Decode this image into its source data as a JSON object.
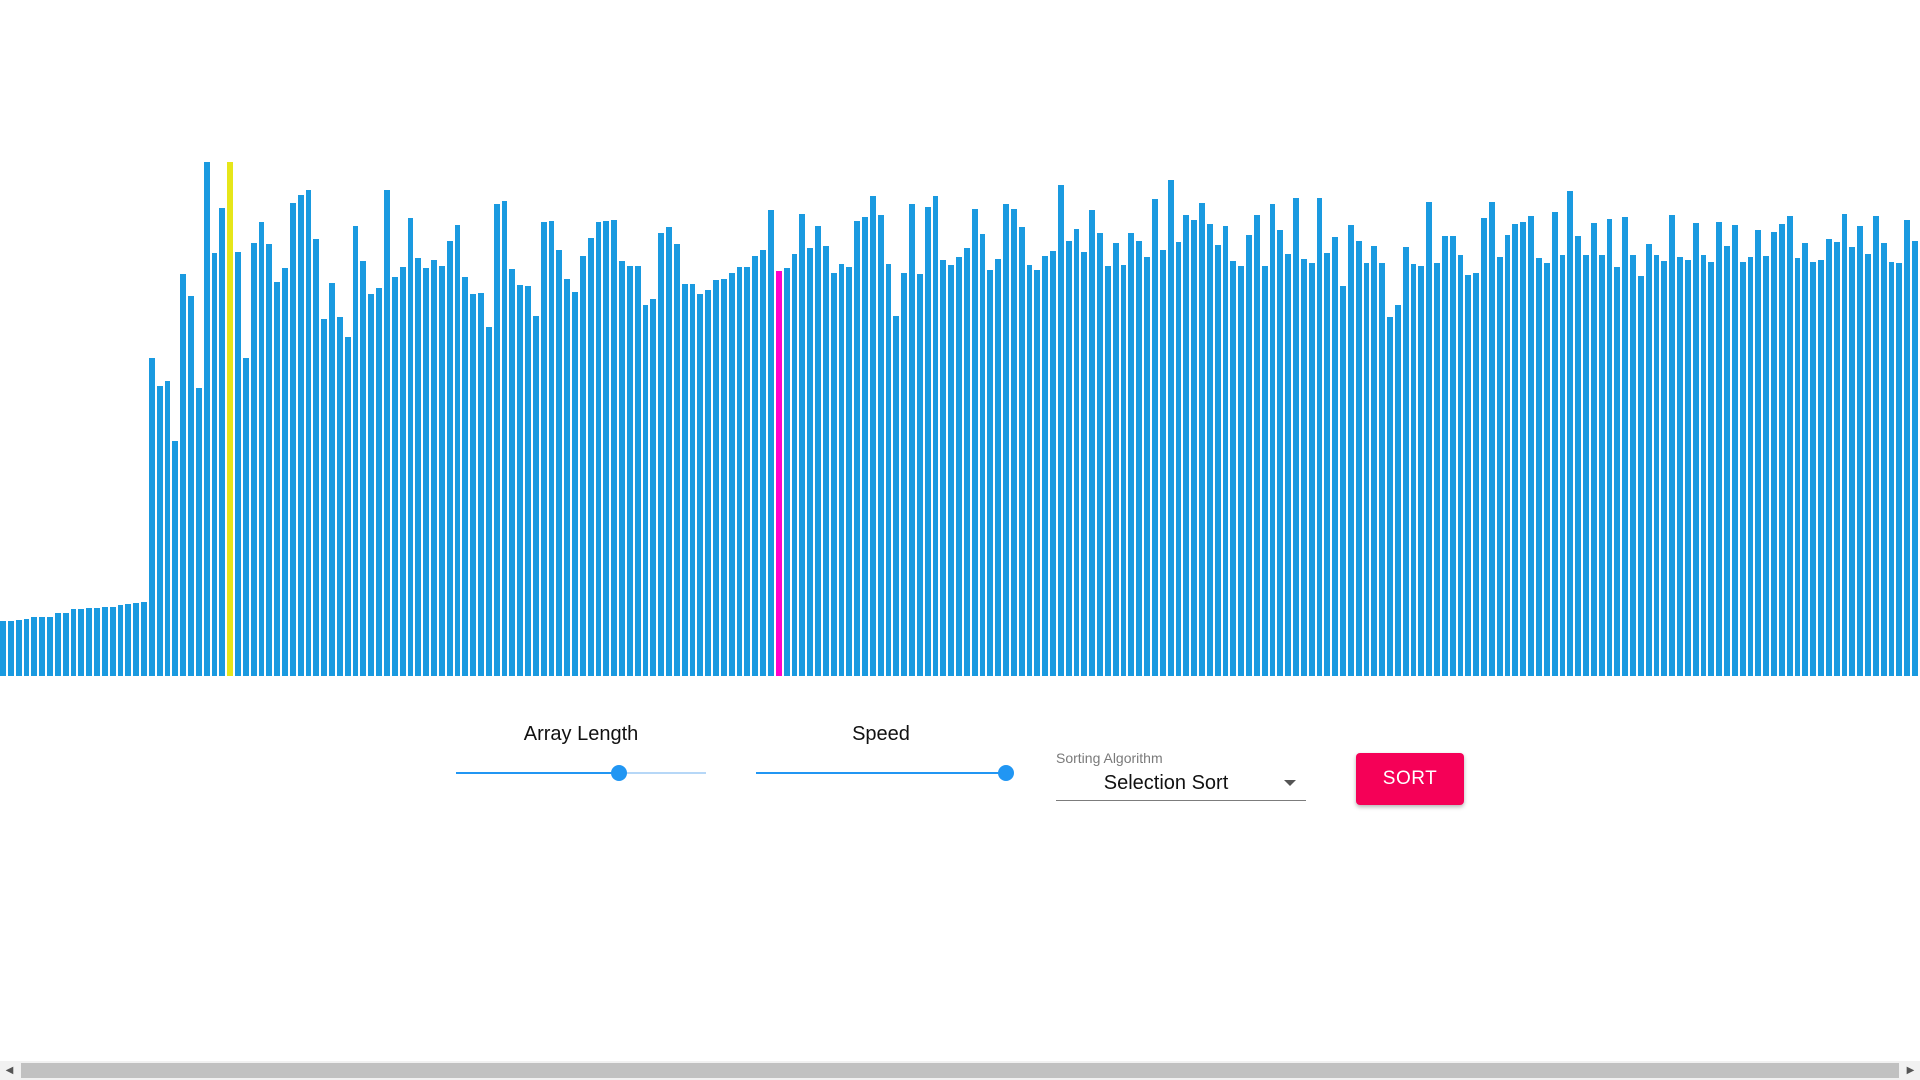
{
  "visualizer": {
    "bar_color": "#1a9ae0",
    "compare_color": "#e6e619",
    "current_color": "#ff00cc",
    "compare_index": 29,
    "current_index": 99,
    "values": [
      55,
      55,
      56,
      57,
      59,
      59,
      59,
      63,
      63,
      67,
      67,
      68,
      68,
      69,
      69,
      71,
      72,
      73,
      74,
      318,
      290,
      295,
      235,
      402,
      380,
      288,
      514,
      423,
      468,
      514,
      424,
      318,
      433,
      454,
      432,
      394,
      408,
      473,
      481,
      486,
      437,
      357,
      393,
      359,
      339,
      450,
      415,
      382,
      388,
      486,
      399,
      409,
      458,
      418,
      408,
      416,
      410,
      435,
      451,
      399,
      382,
      383,
      349,
      472,
      475,
      407,
      391,
      390,
      360,
      454,
      455,
      426,
      397,
      384,
      420,
      438,
      454,
      455,
      456,
      415,
      410,
      410,
      371,
      377,
      443,
      449,
      432,
      392,
      392,
      382,
      386,
      396,
      397,
      403,
      409,
      409,
      420,
      426,
      466,
      405,
      408,
      422,
      462,
      428,
      450,
      430,
      403,
      412,
      409,
      455,
      459,
      480,
      461,
      412,
      360,
      403,
      472,
      402,
      469,
      480,
      416,
      411,
      419,
      428,
      467,
      442,
      406,
      417,
      472,
      467,
      449,
      411,
      406,
      420,
      425,
      491,
      435,
      447,
      424,
      466,
      443,
      410,
      433,
      411,
      443,
      435,
      419,
      477,
      426,
      496,
      434,
      461,
      456,
      473,
      452,
      431,
      450,
      415,
      410,
      441,
      461,
      410,
      472,
      446,
      422,
      478,
      417,
      413,
      478,
      423,
      439,
      390,
      451,
      435,
      413,
      430,
      413,
      359,
      371,
      429,
      412,
      410,
      474,
      413,
      440,
      440,
      421,
      401,
      403,
      458,
      474,
      419,
      441,
      452,
      454,
      460,
      418,
      413,
      464,
      421,
      485,
      440,
      421,
      453,
      421,
      457,
      409,
      459,
      421,
      400,
      432,
      421,
      415,
      461,
      419,
      416,
      453,
      421,
      414,
      454,
      430,
      451,
      414,
      419,
      446,
      420,
      444,
      452,
      460,
      418,
      433,
      414,
      416,
      437,
      434,
      462,
      429,
      450,
      422,
      460,
      433,
      414,
      413,
      456,
      435
    ]
  },
  "controls": {
    "array_length": {
      "label": "Array Length",
      "value_fraction": 0.65
    },
    "speed": {
      "label": "Speed",
      "value_fraction": 1.0
    },
    "algorithm": {
      "label": "Sorting Algorithm",
      "selected": "Selection Sort"
    },
    "sort_button": {
      "label": "SORT",
      "color": "#f50057"
    }
  },
  "accent_color": "#2196f3"
}
